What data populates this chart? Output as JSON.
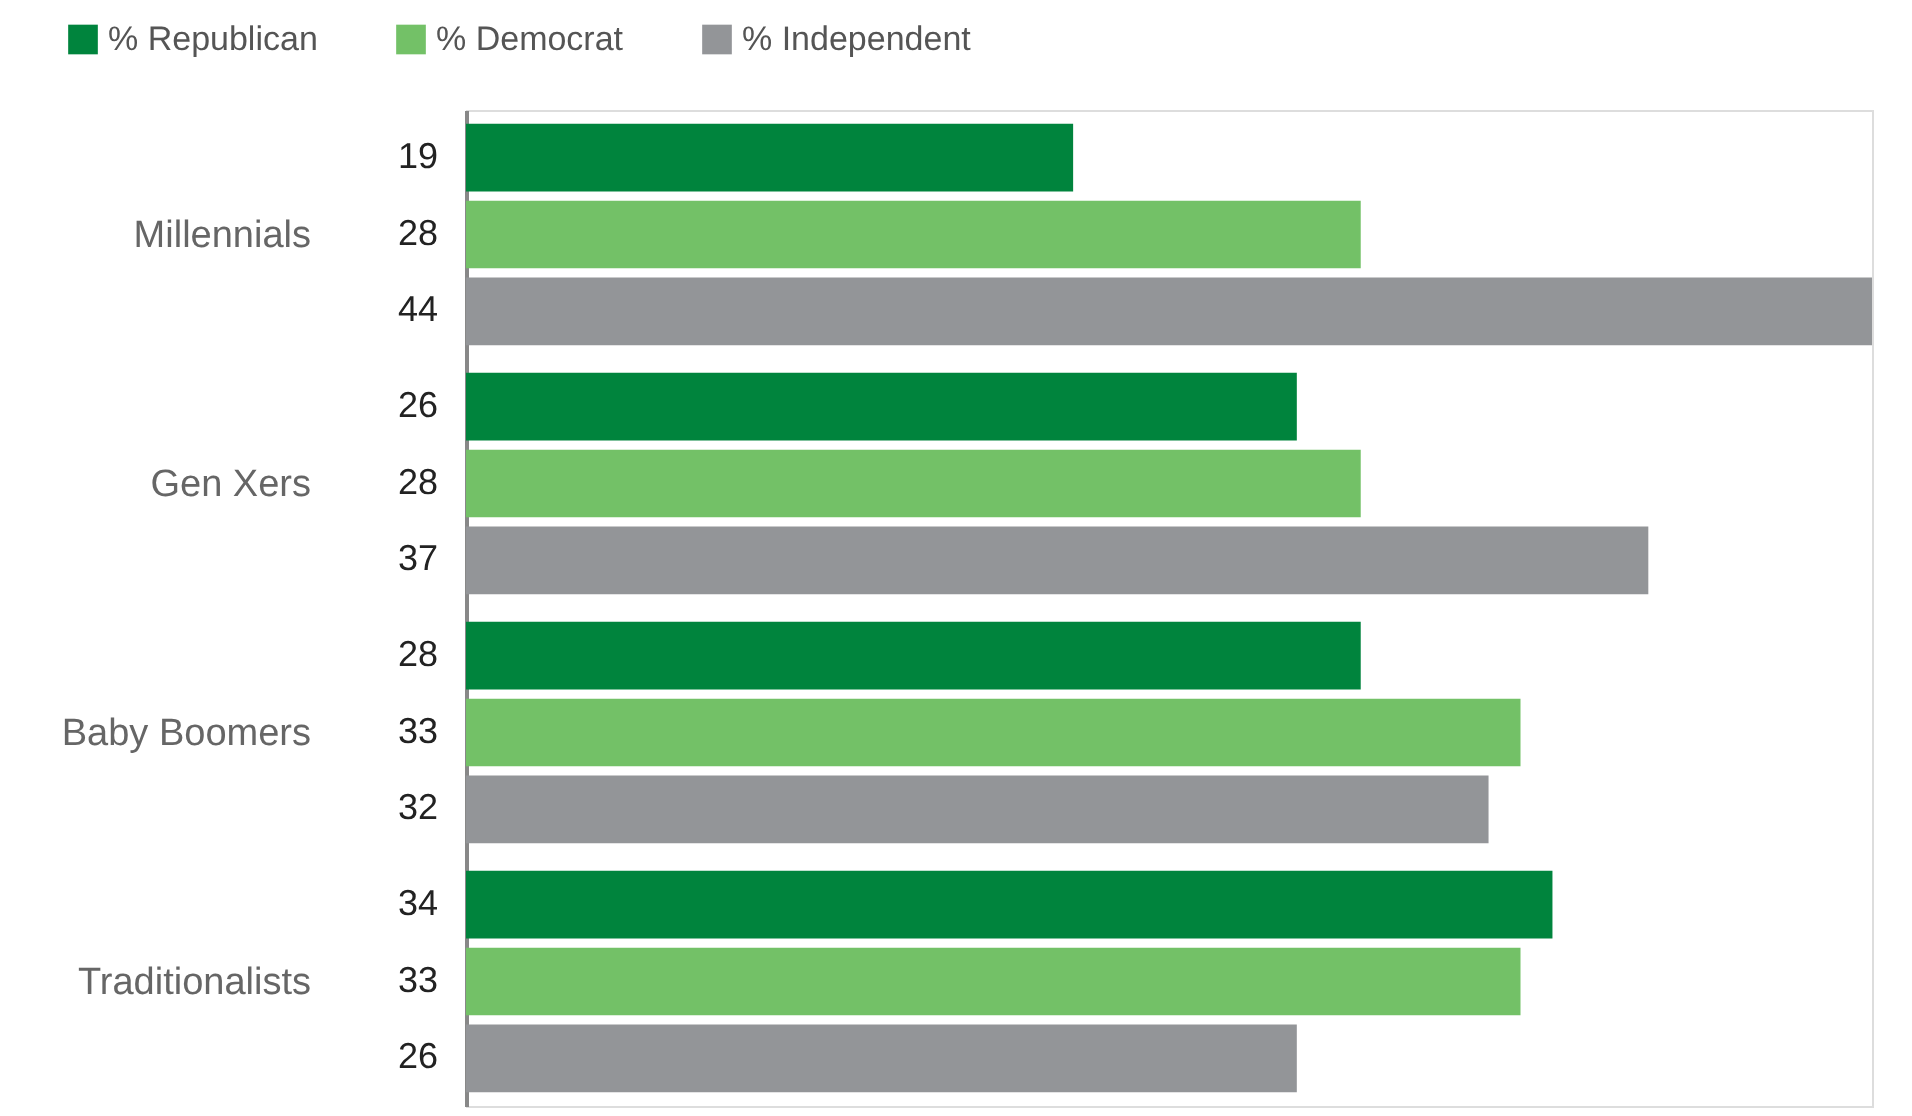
{
  "chart_data": {
    "type": "bar",
    "orientation": "horizontal",
    "categories": [
      "Millennials",
      "Gen Xers",
      "Baby Boomers",
      "Traditionalists"
    ],
    "series": [
      {
        "name": "% Republican",
        "color": "#00843d",
        "values": [
          19,
          26,
          28,
          34
        ]
      },
      {
        "name": "% Democrat",
        "color": "#73c167",
        "values": [
          28,
          28,
          33,
          33
        ]
      },
      {
        "name": "% Independent",
        "color": "#939598",
        "values": [
          44,
          37,
          32,
          26
        ]
      }
    ],
    "data_labels": true,
    "legend": "top left",
    "tick_labels": "y",
    "grid": false
  }
}
